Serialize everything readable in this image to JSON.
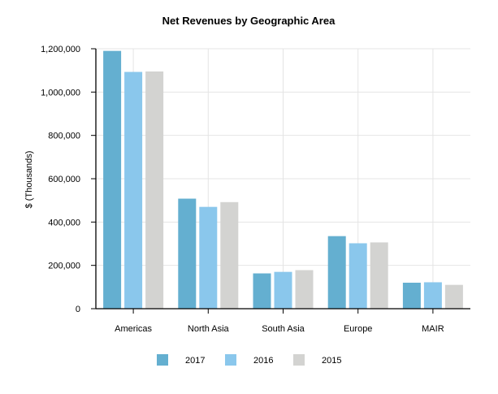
{
  "chart_data": {
    "type": "bar",
    "title": "Net Revenues by Geographic Area",
    "ylabel": "$ (Thousands)",
    "xlabel": "",
    "categories": [
      "Americas",
      "North Asia",
      "South Asia",
      "Europe",
      "MAIR"
    ],
    "series": [
      {
        "name": "2017",
        "color": "#64afd0",
        "values": [
          1190000,
          508000,
          163000,
          335000,
          120000
        ]
      },
      {
        "name": "2016",
        "color": "#8ac7ec",
        "values": [
          1093000,
          470000,
          170000,
          302000,
          122000
        ]
      },
      {
        "name": "2015",
        "color": "#d3d3d1",
        "values": [
          1095000,
          492000,
          178000,
          306000,
          110000
        ]
      }
    ],
    "ylim": [
      0,
      1200000
    ],
    "yticks": [
      0,
      200000,
      400000,
      600000,
      800000,
      1000000,
      1200000
    ],
    "ytick_labels": [
      "0",
      "200,000",
      "400,000",
      "600,000",
      "800,000",
      "1,000,000",
      "1,200,000"
    ],
    "grid": true,
    "legend_position": "bottom-center"
  }
}
